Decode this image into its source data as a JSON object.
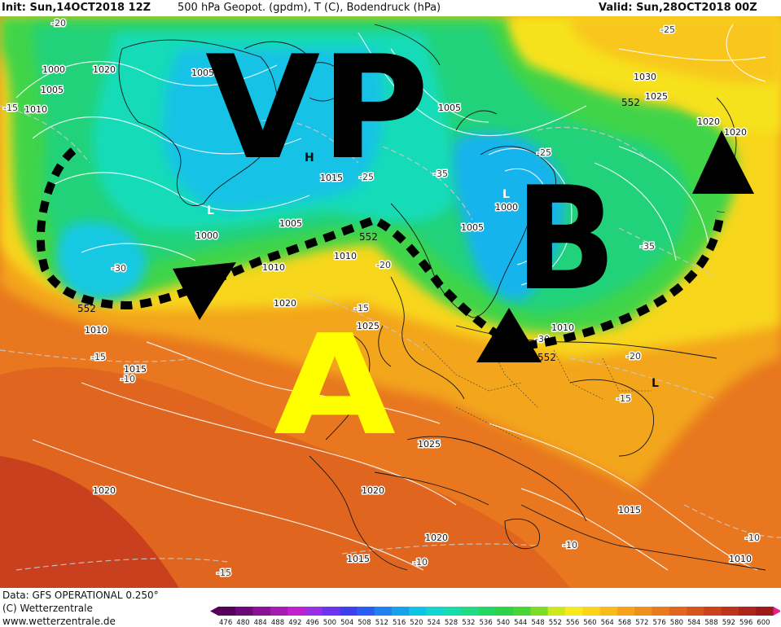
{
  "header": {
    "init": "Init: Sun,14OCT2018 12Z",
    "description": "500 hPa Geopot. (gpdm), T (C), Bodendruck (hPa)",
    "valid": "Valid: Sun,28OCT2018 00Z"
  },
  "overlay": {
    "vp": "VP",
    "b": "B",
    "a": "A"
  },
  "highs_lows": {
    "h": "H",
    "l1": "L",
    "l2": "L",
    "l3": "L"
  },
  "pressure_labels": [
    "1000",
    "1005",
    "1010",
    "1020",
    "1005",
    "1010",
    "1015",
    "1005",
    "1000",
    "1015",
    "1005",
    "1010",
    "1020",
    "1025",
    "1010",
    "1005",
    "1000",
    "1030",
    "1025",
    "1020",
    "1020",
    "1010",
    "1025",
    "1020",
    "1020",
    "1015",
    "1020",
    "1015",
    "1010"
  ],
  "temp_labels": [
    "-20",
    "-15",
    "-30",
    "-25",
    "-35",
    "-35",
    "-25",
    "-30",
    "-20",
    "-15",
    "-15",
    "-10",
    "-30",
    "-20",
    "-15",
    "-10",
    "-10",
    "-10",
    "-15",
    "-25"
  ],
  "geo_labels": [
    "552",
    "552",
    "552",
    "552"
  ],
  "footer": {
    "data_source": "Data: GFS OPERATIONAL 0.250°",
    "copyright": "(C) Wetterzentrale",
    "website": "www.wetterzentrale.de"
  },
  "colorbar": {
    "ticks": [
      "476",
      "480",
      "484",
      "488",
      "492",
      "496",
      "500",
      "504",
      "508",
      "512",
      "516",
      "520",
      "524",
      "528",
      "532",
      "536",
      "540",
      "544",
      "548",
      "552",
      "556",
      "560",
      "564",
      "568",
      "572",
      "576",
      "580",
      "584",
      "588",
      "592",
      "596",
      "600"
    ],
    "colors": [
      "#56005a",
      "#6d0a78",
      "#8a1196",
      "#a51ab3",
      "#c21fd0",
      "#9a2ee4",
      "#6d33ee",
      "#3f3ff2",
      "#2a5ef2",
      "#1f82f0",
      "#16a3ec",
      "#0fc4e6",
      "#12d7d0",
      "#17dcac",
      "#1ddc84",
      "#22d862",
      "#2ed14a",
      "#47d538",
      "#7ddc26",
      "#cfe81a",
      "#f8e81c",
      "#fcd31a",
      "#f9bb18",
      "#f5a419",
      "#f08f1c",
      "#ea7a1e",
      "#e2661f",
      "#d9531f",
      "#cd421e",
      "#bf331d",
      "#ad261b",
      "#9a1b1a"
    ]
  }
}
